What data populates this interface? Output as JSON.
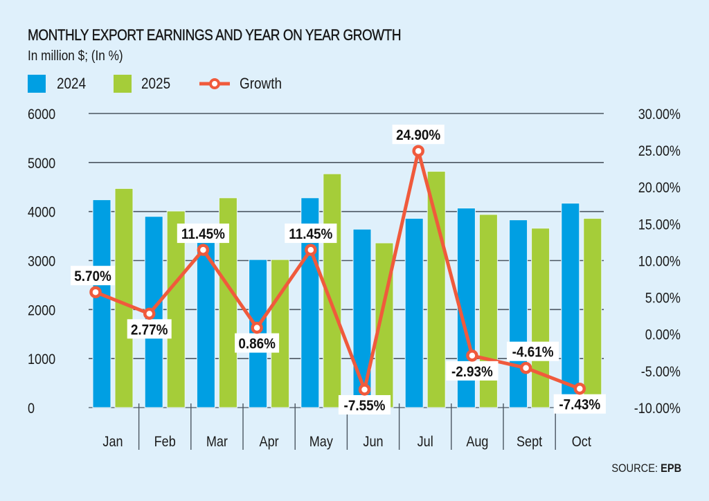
{
  "header": {
    "title": "MONTHLY EXPORT EARNINGS AND YEAR ON YEAR GROWTH",
    "subtitle": "In million $; (In %)"
  },
  "legend": {
    "items": [
      {
        "label": "2024",
        "icon": "blue-square-swatch"
      },
      {
        "label": "2025",
        "icon": "green-square-swatch"
      },
      {
        "label": "Growth",
        "icon": "line-with-circle-marker"
      }
    ]
  },
  "footer": {
    "source_prefix": "SOURCE:",
    "source_name": "EPB"
  },
  "colors": {
    "background": "#dff0fb",
    "series_2024": "#009fe3",
    "series_2025": "#a5cd39",
    "growth": "#f05a3c",
    "gridline": "#4a5560"
  },
  "chart_data": {
    "type": "bar+line",
    "title": "MONTHLY EXPORT EARNINGS AND YEAR ON YEAR GROWTH",
    "subtitle": "In million $; (In %)",
    "categories": [
      "Jan",
      "Feb",
      "Mar",
      "Apr",
      "May",
      "Jun",
      "Jul",
      "Aug",
      "Sept",
      "Oct"
    ],
    "series": [
      {
        "name": "2024",
        "axis": "left",
        "type": "bar",
        "values": [
          4240,
          3900,
          3490,
          3020,
          4280,
          3640,
          3860,
          4070,
          3830,
          4170
        ]
      },
      {
        "name": "2025",
        "axis": "left",
        "type": "bar",
        "values": [
          4470,
          4010,
          4280,
          3020,
          4770,
          3360,
          4820,
          3940,
          3660,
          3860
        ]
      },
      {
        "name": "Growth",
        "axis": "right",
        "type": "line",
        "values": [
          5.7,
          2.77,
          11.45,
          0.86,
          11.45,
          -7.55,
          24.9,
          -2.93,
          -4.61,
          -7.43
        ],
        "labels": [
          "5.70%",
          "2.77%",
          "11.45%",
          "0.86%",
          "11.45%",
          "-7.55%",
          "24.90%",
          "-2.93%",
          "-4.61%",
          "-7.43%"
        ]
      }
    ],
    "left_axis": {
      "ylim": [
        0,
        6000
      ],
      "ticks": [
        0,
        1000,
        2000,
        3000,
        4000,
        5000,
        6000
      ],
      "tick_labels": [
        "0",
        "1000",
        "2000",
        "3000",
        "4000",
        "5000",
        "6000"
      ]
    },
    "right_axis": {
      "ylim": [
        -10,
        30
      ],
      "ticks": [
        -10,
        -5,
        0,
        5,
        10,
        15,
        20,
        25,
        30
      ],
      "tick_labels": [
        "-10.00%",
        "-5.00%",
        "0.00%",
        "5.00%",
        "10.00%",
        "15.00%",
        "20.00%",
        "25.00%",
        "30.00%"
      ]
    },
    "grid": true,
    "legend_position": "top-left",
    "source": "SOURCE: EPB"
  }
}
